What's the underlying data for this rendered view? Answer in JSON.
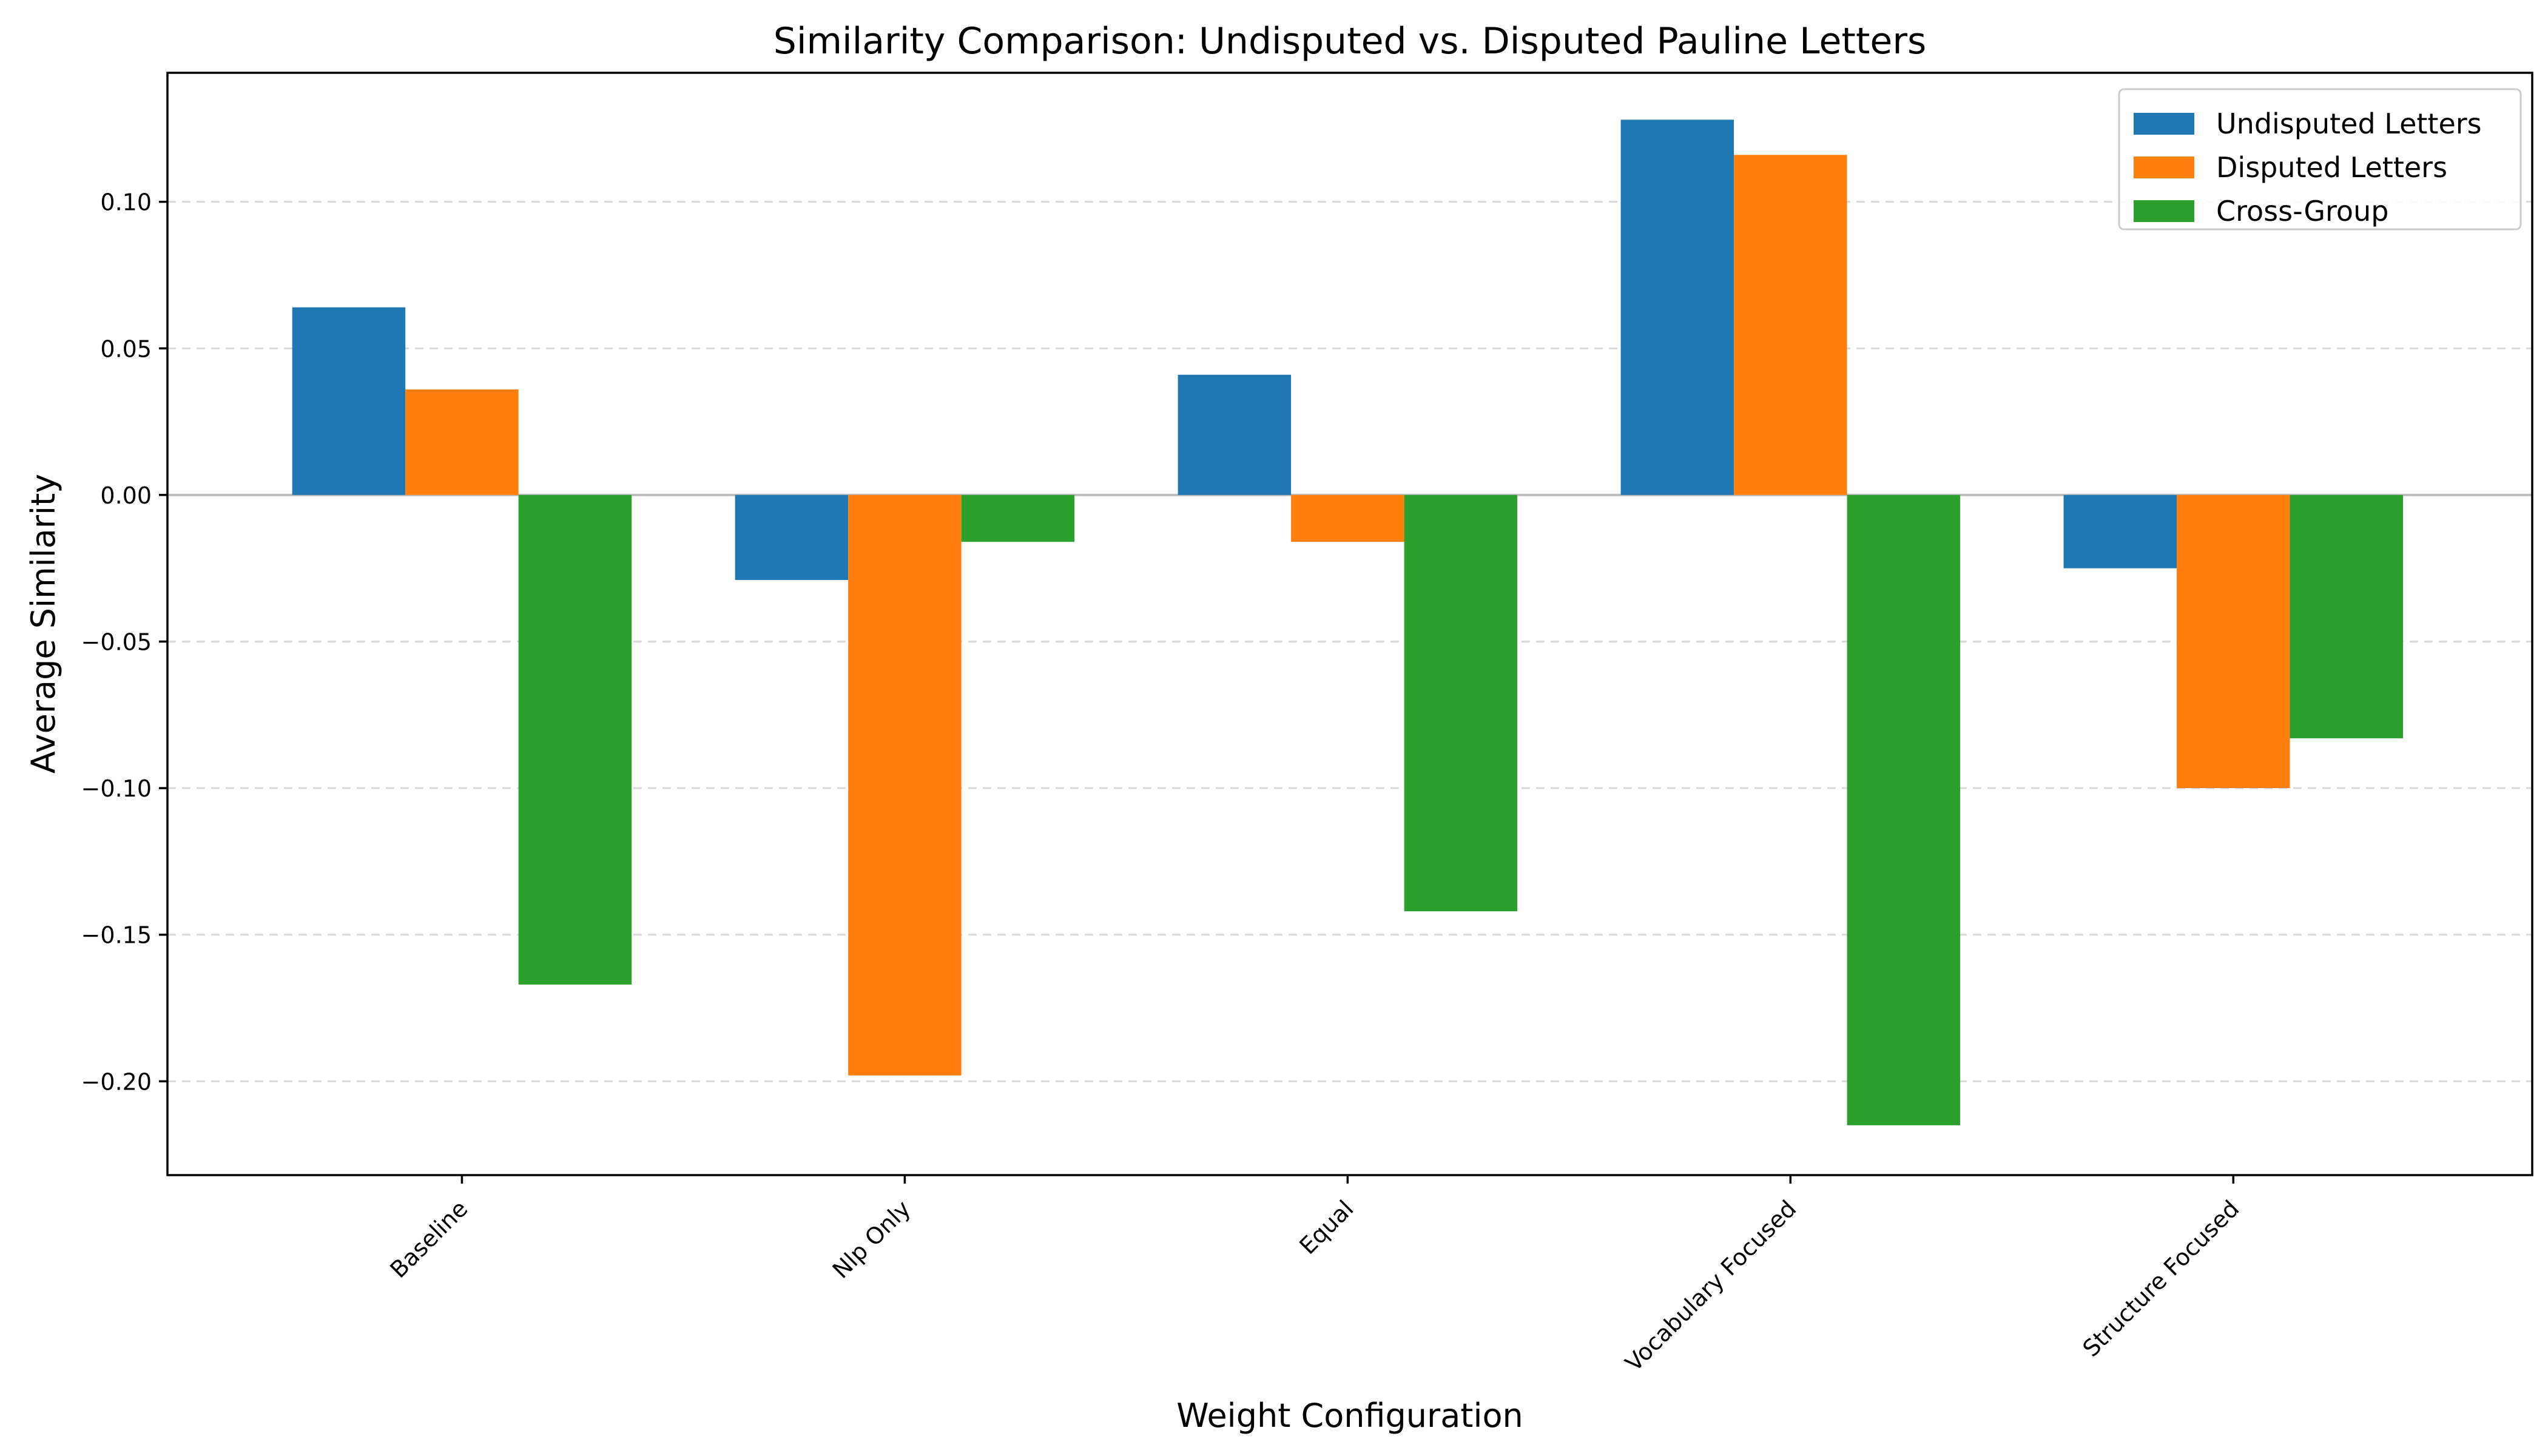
{
  "chart_data": {
    "type": "bar",
    "title": "Similarity Comparison: Undisputed vs. Disputed Pauline Letters",
    "xlabel": "Weight Configuration",
    "ylabel": "Average Similarity",
    "categories": [
      "Baseline",
      "Nlp Only",
      "Equal",
      "Vocabulary Focused",
      "Structure Focused"
    ],
    "series": [
      {
        "name": "Undisputed Letters",
        "color": "#1f77b4",
        "values": [
          0.064,
          -0.029,
          0.041,
          0.128,
          -0.025
        ]
      },
      {
        "name": "Disputed Letters",
        "color": "#ff7f0e",
        "values": [
          0.036,
          -0.198,
          -0.016,
          0.116,
          -0.1
        ]
      },
      {
        "name": "Cross-Group",
        "color": "#2ca02c",
        "values": [
          -0.167,
          -0.016,
          -0.142,
          -0.215,
          -0.083
        ]
      }
    ],
    "ylim": [
      -0.232,
      0.144
    ],
    "yticks": [
      0.1,
      0.05,
      0.0,
      -0.05,
      -0.1,
      -0.15,
      -0.2
    ],
    "ytick_labels": [
      "0.10",
      "0.05",
      "0.00",
      "−0.05",
      "−0.10",
      "−0.15",
      "−0.20"
    ],
    "grid": true,
    "legend_position": "top-right"
  }
}
